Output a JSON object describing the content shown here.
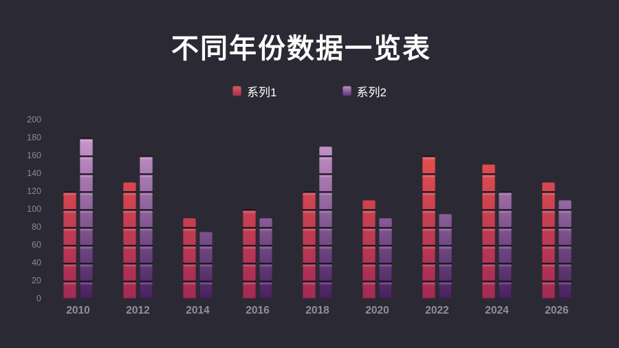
{
  "title": "不同年份数据一览表",
  "colors": {
    "background": "#2b2a34",
    "title_color": "#ffffff",
    "axis_label": "#8b8a94",
    "category_label": "#918f99",
    "segment_divider": "rgba(24,20,32,0.92)",
    "segment_highlight": "rgba(255,255,255,0.17)"
  },
  "legend": [
    {
      "label": "系列1",
      "gradient_top": "#d9604f",
      "gradient_bottom": "#a52c55"
    },
    {
      "label": "系列2",
      "gradient_top": "#bc8fc4",
      "gradient_bottom": "#5e2f77"
    }
  ],
  "chart_data": {
    "type": "bar",
    "title": "不同年份数据一览表",
    "categories": [
      "2010",
      "2012",
      "2014",
      "2016",
      "2018",
      "2020",
      "2022",
      "2024",
      "2026"
    ],
    "series": [
      {
        "name": "系列1",
        "values": [
          120,
          130,
          90,
          100,
          120,
          110,
          160,
          150,
          130
        ],
        "gradient_bottom": "#a22a55",
        "gradient_top": "#f2594c"
      },
      {
        "name": "系列2",
        "values": [
          180,
          160,
          75,
          90,
          170,
          90,
          95,
          120,
          110
        ],
        "gradient_bottom": "#47215f",
        "gradient_top": "#d7a4d8"
      }
    ],
    "xlabel": "",
    "ylabel": "",
    "ylim": [
      0,
      200
    ],
    "ytick_step": 20,
    "grid": false,
    "legend_position": "top",
    "segment_unit": 20
  }
}
